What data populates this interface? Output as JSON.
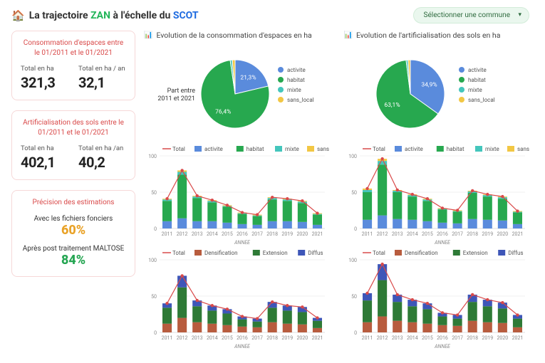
{
  "header": {
    "title_pre": "La trajectoire",
    "title_zan": "ZAN",
    "title_mid": "à l'échelle du",
    "title_scot": "SCOT",
    "house_emoji": "🏠",
    "dropdown_label": "Sélectionner une commune"
  },
  "cards": {
    "consommation": {
      "heading": "Consommation d'espaces entre le 01/2011 et le 01/2021",
      "stats": [
        {
          "label": "Total en ha",
          "value": "321,3"
        },
        {
          "label": "Total en ha / an",
          "value": "32,1"
        }
      ]
    },
    "artificialisation": {
      "heading": "Artificialisation des sols entre le 01/2011 et le 01/2021",
      "stats": [
        {
          "label": "Total en ha",
          "value": "402,1"
        },
        {
          "label": "Total en ha /an",
          "value": "40,2"
        }
      ]
    },
    "precision": {
      "heading": "Précision des estimations",
      "rows": [
        {
          "label": "Avec les fichiers fonciers",
          "pct": "60%",
          "cls": "or"
        },
        {
          "label": "Après post traitement MALTOSE",
          "pct": "84%",
          "cls": "gr"
        }
      ]
    }
  },
  "palette": {
    "activite": "#5a8bdc",
    "habitat": "#27a84f",
    "mixte": "#44c6bc",
    "sans_local": "#f2c744",
    "total_line": "#d94a4a",
    "densification": "#b85c3e",
    "extension": "#2e7a36",
    "diffus": "#3e56b8",
    "grid": "#e8e8e8",
    "axis": "#cfcfcf"
  },
  "pies": {
    "center_label": "Part entre 2011 et 2021",
    "legend": [
      "activite",
      "habitat",
      "mixte",
      "sans_local"
    ],
    "left": {
      "title": "Evolution de la consommation d'espaces en ha",
      "slices": [
        {
          "key": "activite",
          "pct": 21.3,
          "label": "21,3%",
          "color": "#5a8bdc"
        },
        {
          "key": "habitat",
          "pct": 76.4,
          "label": "76,4%",
          "color": "#27a84f"
        },
        {
          "key": "mixte",
          "pct": 1.0,
          "color": "#44c6bc"
        },
        {
          "key": "sans_local",
          "pct": 1.3,
          "color": "#f2c744"
        }
      ]
    },
    "right": {
      "title": "Evolution de l'artificialisation des sols en ha",
      "slices": [
        {
          "key": "activite",
          "pct": 34.9,
          "label": "34,9%",
          "color": "#5a8bdc"
        },
        {
          "key": "habitat",
          "pct": 63.1,
          "label": "63,1%",
          "color": "#27a84f"
        },
        {
          "key": "mixte",
          "pct": 0.9,
          "color": "#44c6bc"
        },
        {
          "key": "sans_local",
          "pct": 1.1,
          "color": "#f2c744"
        }
      ]
    }
  },
  "barA": {
    "legend": [
      "Total",
      "activite",
      "habitat",
      "mixte",
      "sans_local"
    ],
    "legend_colors": [
      "#d94a4a",
      "#5a8bdc",
      "#27a84f",
      "#44c6bc",
      "#f2c744"
    ],
    "years": [
      "2011",
      "2012",
      "2013",
      "2014",
      "2015",
      "2016",
      "2017",
      "2018",
      "2019",
      "2020",
      "2021"
    ],
    "ylim": [
      0,
      100
    ],
    "ytick": 50,
    "xlabel": "ANNEE",
    "left": {
      "stacks": [
        {
          "activite": 10,
          "habitat": 28,
          "mixte": 2,
          "sans_local": 1
        },
        {
          "activite": 14,
          "habitat": 60,
          "mixte": 4,
          "sans_local": 2
        },
        {
          "activite": 10,
          "habitat": 32,
          "mixte": 2,
          "sans_local": 1
        },
        {
          "activite": 10,
          "habitat": 26,
          "mixte": 2,
          "sans_local": 1
        },
        {
          "activite": 8,
          "habitat": 22,
          "mixte": 1,
          "sans_local": 1
        },
        {
          "activite": 6,
          "habitat": 14,
          "mixte": 1,
          "sans_local": 1
        },
        {
          "activite": 5,
          "habitat": 12,
          "mixte": 1,
          "sans_local": 1
        },
        {
          "activite": 10,
          "habitat": 30,
          "mixte": 2,
          "sans_local": 1
        },
        {
          "activite": 10,
          "habitat": 28,
          "mixte": 2,
          "sans_local": 1
        },
        {
          "activite": 9,
          "habitat": 26,
          "mixte": 2,
          "sans_local": 1
        },
        {
          "activite": 5,
          "habitat": 14,
          "mixte": 1,
          "sans_local": 1
        }
      ]
    },
    "right": {
      "stacks": [
        {
          "activite": 12,
          "habitat": 38,
          "mixte": 3,
          "sans_local": 2
        },
        {
          "activite": 18,
          "habitat": 70,
          "mixte": 5,
          "sans_local": 3
        },
        {
          "activite": 13,
          "habitat": 37,
          "mixte": 2,
          "sans_local": 1
        },
        {
          "activite": 12,
          "habitat": 32,
          "mixte": 2,
          "sans_local": 1
        },
        {
          "activite": 10,
          "habitat": 28,
          "mixte": 2,
          "sans_local": 1
        },
        {
          "activite": 8,
          "habitat": 18,
          "mixte": 1,
          "sans_local": 1
        },
        {
          "activite": 7,
          "habitat": 16,
          "mixte": 1,
          "sans_local": 1
        },
        {
          "activite": 13,
          "habitat": 36,
          "mixte": 2,
          "sans_local": 1
        },
        {
          "activite": 12,
          "habitat": 32,
          "mixte": 2,
          "sans_local": 1
        },
        {
          "activite": 11,
          "habitat": 30,
          "mixte": 2,
          "sans_local": 1
        },
        {
          "activite": 6,
          "habitat": 16,
          "mixte": 1,
          "sans_local": 1
        }
      ]
    }
  },
  "barB": {
    "legend": [
      "Total",
      "Densification",
      "Extension",
      "Diffus"
    ],
    "legend_colors": [
      "#d94a4a",
      "#b85c3e",
      "#2e7a36",
      "#3e56b8"
    ],
    "years": [
      "2011",
      "2012",
      "2013",
      "2014",
      "2015",
      "2016",
      "2017",
      "2018",
      "2019",
      "2020",
      "2021"
    ],
    "ylim": [
      0,
      100
    ],
    "ytick": 50,
    "xlabel": "ANNEE",
    "left": {
      "stacks": [
        {
          "dens": 12,
          "ext": 22,
          "dif": 6
        },
        {
          "dens": 20,
          "ext": 42,
          "dif": 16
        },
        {
          "dens": 14,
          "ext": 22,
          "dif": 8
        },
        {
          "dens": 12,
          "ext": 18,
          "dif": 7
        },
        {
          "dens": 10,
          "ext": 16,
          "dif": 6
        },
        {
          "dens": 8,
          "ext": 10,
          "dif": 4
        },
        {
          "dens": 7,
          "ext": 8,
          "dif": 4
        },
        {
          "dens": 14,
          "ext": 20,
          "dif": 8
        },
        {
          "dens": 12,
          "ext": 18,
          "dif": 7
        },
        {
          "dens": 11,
          "ext": 17,
          "dif": 7
        },
        {
          "dens": 6,
          "ext": 10,
          "dif": 4
        }
      ]
    },
    "right": {
      "stacks": [
        {
          "dens": 14,
          "ext": 30,
          "dif": 10
        },
        {
          "dens": 22,
          "ext": 50,
          "dif": 22
        },
        {
          "dens": 16,
          "ext": 26,
          "dif": 10
        },
        {
          "dens": 14,
          "ext": 22,
          "dif": 9
        },
        {
          "dens": 12,
          "ext": 20,
          "dif": 8
        },
        {
          "dens": 10,
          "ext": 12,
          "dif": 5
        },
        {
          "dens": 9,
          "ext": 10,
          "dif": 5
        },
        {
          "dens": 16,
          "ext": 26,
          "dif": 10
        },
        {
          "dens": 14,
          "ext": 22,
          "dif": 9
        },
        {
          "dens": 13,
          "ext": 20,
          "dif": 8
        },
        {
          "dens": 7,
          "ext": 12,
          "dif": 5
        }
      ]
    }
  }
}
